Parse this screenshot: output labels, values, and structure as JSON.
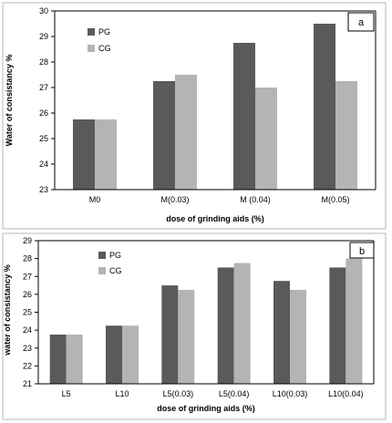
{
  "charts": [
    {
      "panel_label": "a",
      "chart_data": {
        "type": "bar",
        "categories": [
          "M0",
          "M(0.03)",
          "M (0.04)",
          "M(0.05)"
        ],
        "series": [
          {
            "name": "PG",
            "values": [
              25.75,
              27.25,
              28.75,
              29.5
            ]
          },
          {
            "name": "CG",
            "values": [
              25.75,
              27.5,
              27.0,
              27.25
            ]
          }
        ],
        "xlabel": "dose of grinding aids  (%)",
        "ylabel": "Water of consistancy %",
        "ylim": [
          23,
          30
        ],
        "yticks": [
          23,
          24,
          25,
          26,
          27,
          28,
          29,
          30
        ],
        "grid": false,
        "legend_position": "top-left"
      }
    },
    {
      "panel_label": "b",
      "chart_data": {
        "type": "bar",
        "categories": [
          "L5",
          "L10",
          "L5(0.03)",
          "L5(0.04)",
          "L10(0.03)",
          "L10(0.04)"
        ],
        "series": [
          {
            "name": "PG",
            "values": [
              23.75,
              24.25,
              26.5,
              27.5,
              26.75,
              27.5
            ]
          },
          {
            "name": "CG",
            "values": [
              23.75,
              24.25,
              26.25,
              27.75,
              26.25,
              28.0
            ]
          }
        ],
        "xlabel": "dose of grinding aids  (%)",
        "ylabel": "water of consistancy %",
        "ylim": [
          21,
          29
        ],
        "yticks": [
          21,
          22,
          23,
          24,
          25,
          26,
          27,
          28,
          29
        ],
        "grid": false,
        "legend_position": "top-left"
      }
    }
  ],
  "colors": {
    "PG": "#5a5a5a",
    "CG": "#b4b4b4",
    "axis": "#000000",
    "background": "#ffffff"
  }
}
